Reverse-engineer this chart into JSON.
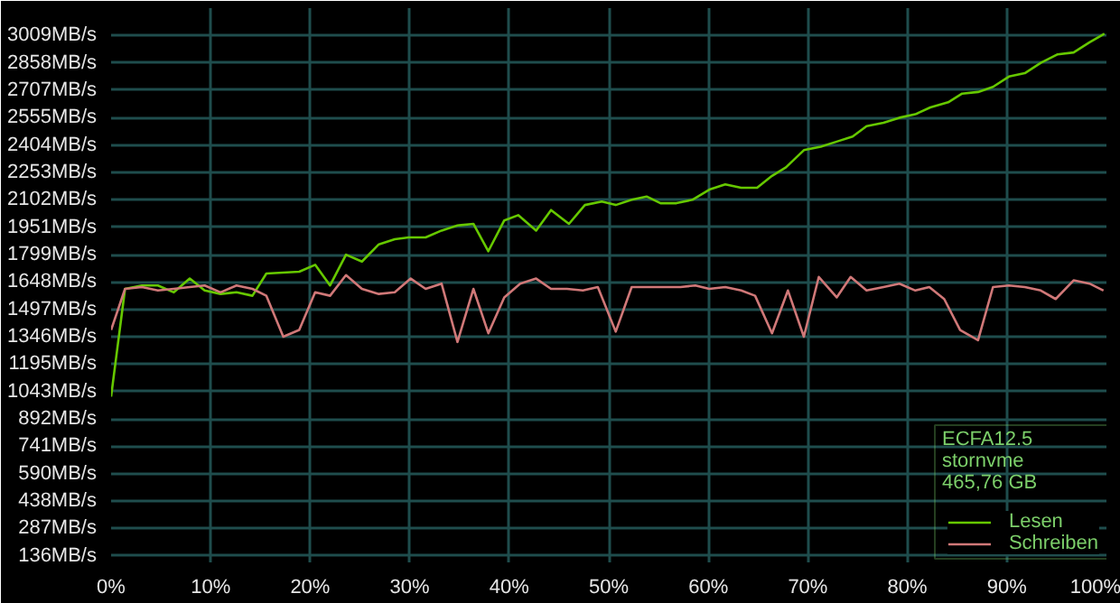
{
  "chart_data": {
    "type": "line",
    "xlim": [
      0,
      100
    ],
    "xticks": [
      {
        "value": 0,
        "label": "0%"
      },
      {
        "value": 10,
        "label": "10%"
      },
      {
        "value": 20,
        "label": "20%"
      },
      {
        "value": 30,
        "label": "30%"
      },
      {
        "value": 40,
        "label": "40%"
      },
      {
        "value": 50,
        "label": "50%"
      },
      {
        "value": 60,
        "label": "60%"
      },
      {
        "value": 70,
        "label": "70%"
      },
      {
        "value": 80,
        "label": "80%"
      },
      {
        "value": 90,
        "label": "90%"
      },
      {
        "value": 100,
        "label": "100%"
      }
    ],
    "ylim": [
      100,
      3160
    ],
    "yticks": [
      {
        "value": 136,
        "label": "136MB/s"
      },
      {
        "value": 287,
        "label": "287MB/s"
      },
      {
        "value": 438,
        "label": "438MB/s"
      },
      {
        "value": 590,
        "label": "590MB/s"
      },
      {
        "value": 741,
        "label": "741MB/s"
      },
      {
        "value": 892,
        "label": "892MB/s"
      },
      {
        "value": 1043,
        "label": "1043MB/s"
      },
      {
        "value": 1195,
        "label": "1195MB/s"
      },
      {
        "value": 1346,
        "label": "1346MB/s"
      },
      {
        "value": 1497,
        "label": "1497MB/s"
      },
      {
        "value": 1648,
        "label": "1648MB/s"
      },
      {
        "value": 1799,
        "label": "1799MB/s"
      },
      {
        "value": 1951,
        "label": "1951MB/s"
      },
      {
        "value": 2102,
        "label": "2102MB/s"
      },
      {
        "value": 2253,
        "label": "2253MB/s"
      },
      {
        "value": 2404,
        "label": "2404MB/s"
      },
      {
        "value": 2555,
        "label": "2555MB/s"
      },
      {
        "value": 2707,
        "label": "2707MB/s"
      },
      {
        "value": 2858,
        "label": "2858MB/s"
      },
      {
        "value": 3009,
        "label": "3009MB/s"
      }
    ],
    "grid": true,
    "legend": "bottom right",
    "annotations": [
      "ECFA12.5",
      "stornvme",
      "465,76 GB"
    ],
    "series": [
      {
        "name": "Lesen",
        "color": "#66c800",
        "x": [
          0,
          1.4,
          3.1,
          4.7,
          6.3,
          7.9,
          9.4,
          11.0,
          12.6,
          14.2,
          15.6,
          18.9,
          20.5,
          22.0,
          23.6,
          25.2,
          26.9,
          28.5,
          29.9,
          31.6,
          33.2,
          34.8,
          36.4,
          37.9,
          39.5,
          40.9,
          42.7,
          44.2,
          46.0,
          47.6,
          49.3,
          50.7,
          52.3,
          53.8,
          55.2,
          56.8,
          58.4,
          60.1,
          61.7,
          63.3,
          64.9,
          66.4,
          67.8,
          69.6,
          71.3,
          72.9,
          74.5,
          75.9,
          77.6,
          79.2,
          80.8,
          82.3,
          84.1,
          85.5,
          87.1,
          88.6,
          90.2,
          91.8,
          93.4,
          95.1,
          96.7,
          98.3,
          99.8
        ],
        "values": [
          1015,
          1610,
          1629,
          1629,
          1591,
          1667,
          1601,
          1582,
          1591,
          1572,
          1695,
          1705,
          1743,
          1629,
          1799,
          1761,
          1856,
          1884,
          1894,
          1894,
          1932,
          1960,
          1969,
          1818,
          1988,
          2017,
          1932,
          2045,
          1969,
          2073,
          2092,
          2073,
          2102,
          2120,
          2083,
          2083,
          2102,
          2158,
          2187,
          2168,
          2168,
          2234,
          2281,
          2376,
          2395,
          2423,
          2451,
          2508,
          2527,
          2555,
          2574,
          2612,
          2640,
          2688,
          2697,
          2725,
          2782,
          2801,
          2858,
          2905,
          2915,
          2971,
          3018
        ]
      },
      {
        "name": "Schreiben",
        "color": "#d07878",
        "x": [
          0,
          1.4,
          3.1,
          4.7,
          6.3,
          7.9,
          9.4,
          11.0,
          12.6,
          14.2,
          15.6,
          17.3,
          18.9,
          20.5,
          22.0,
          23.6,
          25.2,
          26.9,
          28.5,
          30.1,
          31.6,
          33.2,
          34.8,
          36.4,
          37.9,
          39.5,
          41.1,
          42.7,
          44.2,
          45.8,
          47.4,
          48.9,
          50.7,
          52.3,
          53.8,
          55.6,
          57.2,
          58.7,
          60.1,
          61.7,
          63.3,
          64.7,
          66.4,
          68.0,
          69.6,
          71.1,
          72.9,
          74.3,
          75.9,
          77.6,
          79.2,
          80.8,
          82.2,
          83.7,
          85.3,
          87.1,
          88.6,
          90.2,
          91.8,
          93.4,
          94.9,
          96.7,
          98.3,
          99.7
        ],
        "values": [
          1383,
          1610,
          1620,
          1601,
          1610,
          1620,
          1629,
          1591,
          1629,
          1610,
          1572,
          1346,
          1383,
          1591,
          1572,
          1686,
          1610,
          1582,
          1591,
          1667,
          1610,
          1639,
          1317,
          1610,
          1365,
          1563,
          1639,
          1667,
          1610,
          1610,
          1601,
          1620,
          1374,
          1620,
          1620,
          1620,
          1620,
          1629,
          1610,
          1620,
          1601,
          1572,
          1365,
          1601,
          1346,
          1676,
          1563,
          1676,
          1601,
          1620,
          1639,
          1601,
          1620,
          1554,
          1383,
          1327,
          1620,
          1629,
          1620,
          1601,
          1554,
          1657,
          1639,
          1601
        ]
      }
    ]
  }
}
